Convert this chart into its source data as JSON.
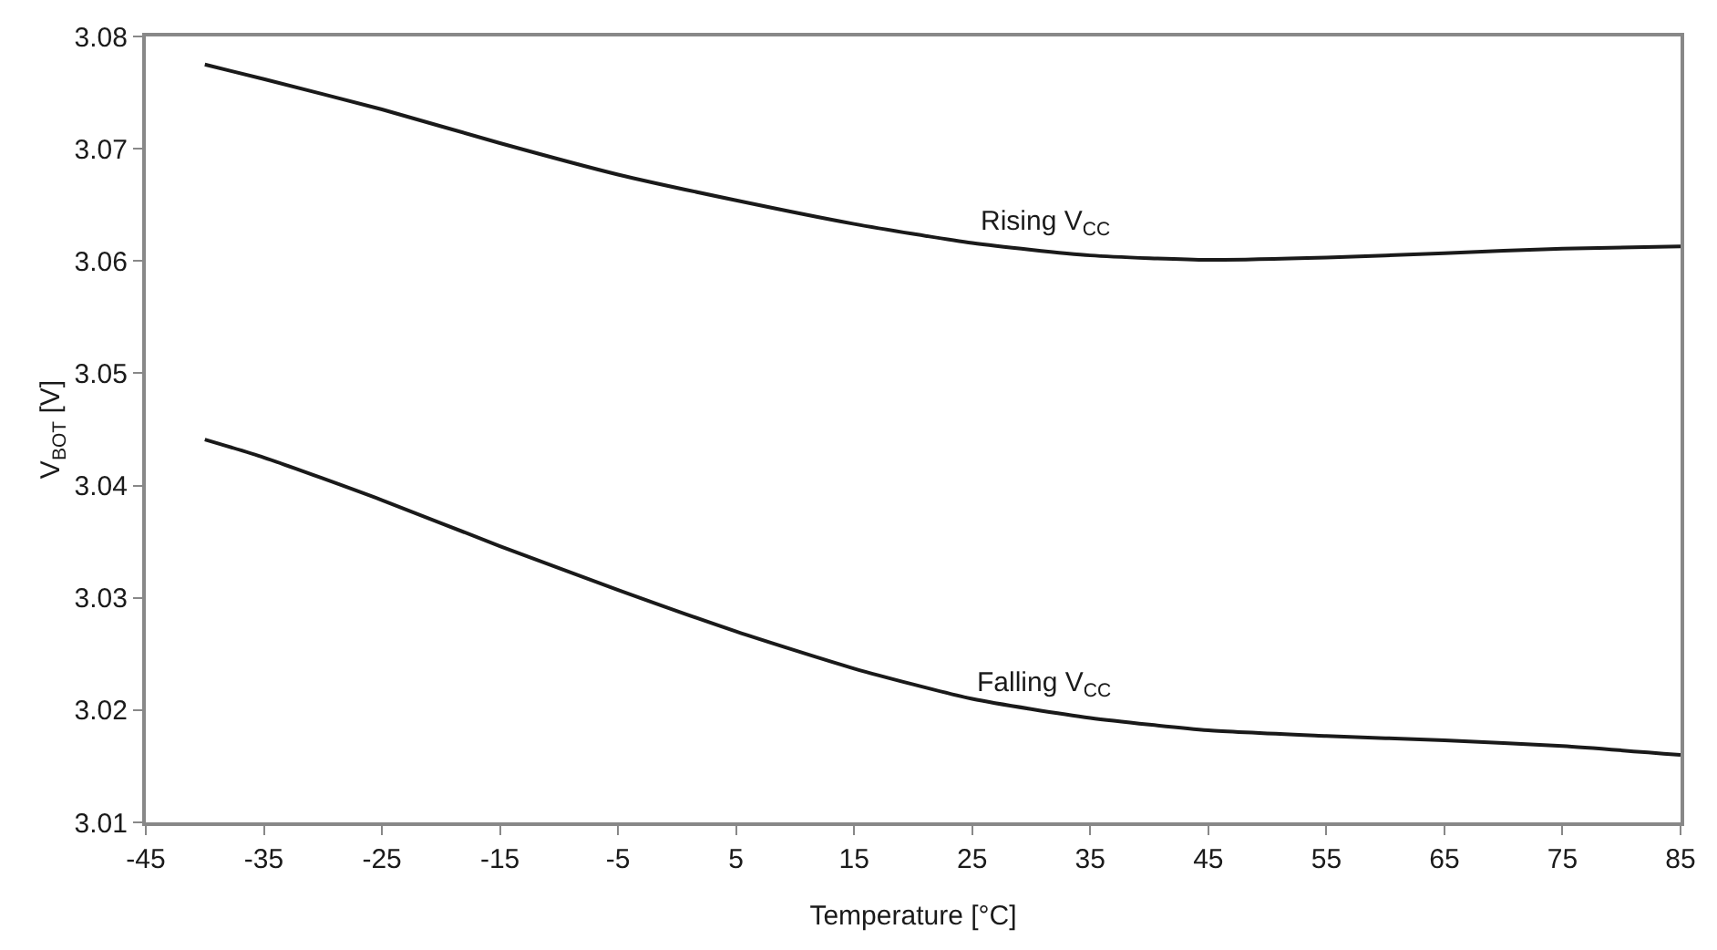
{
  "chart_data": {
    "type": "line",
    "xlabel": "Temperature [°C]",
    "ylabel": "V$_{BOT}$ [V]",
    "x": [
      -40,
      -35,
      -25,
      -15,
      -5,
      5,
      15,
      25,
      35,
      45,
      55,
      65,
      75,
      85
    ],
    "series": [
      {
        "name": "Rising V$_{CC}$",
        "color": "#1a1a1a",
        "values": [
          3.0775,
          3.0762,
          3.0735,
          3.0705,
          3.0677,
          3.0654,
          3.0633,
          3.0616,
          3.0605,
          3.0601,
          3.0603,
          3.0607,
          3.0611,
          3.0613
        ]
      },
      {
        "name": "Falling V$_{CC}$",
        "color": "#1a1a1a",
        "values": [
          3.0441,
          3.0425,
          3.0387,
          3.0346,
          3.0307,
          3.027,
          3.0237,
          3.021,
          3.0193,
          3.0182,
          3.0177,
          3.0173,
          3.0168,
          3.016
        ]
      }
    ],
    "xlim": [
      -45,
      85
    ],
    "xticks": [
      -45,
      -35,
      -25,
      -15,
      -5,
      5,
      15,
      25,
      35,
      45,
      55,
      65,
      75,
      85
    ],
    "ylim": [
      3.01,
      3.08
    ],
    "yticks": [
      3.01,
      3.02,
      3.03,
      3.04,
      3.05,
      3.06,
      3.07,
      3.08
    ],
    "grid": false,
    "legend": false,
    "marker": "none",
    "line_style": "solid"
  }
}
